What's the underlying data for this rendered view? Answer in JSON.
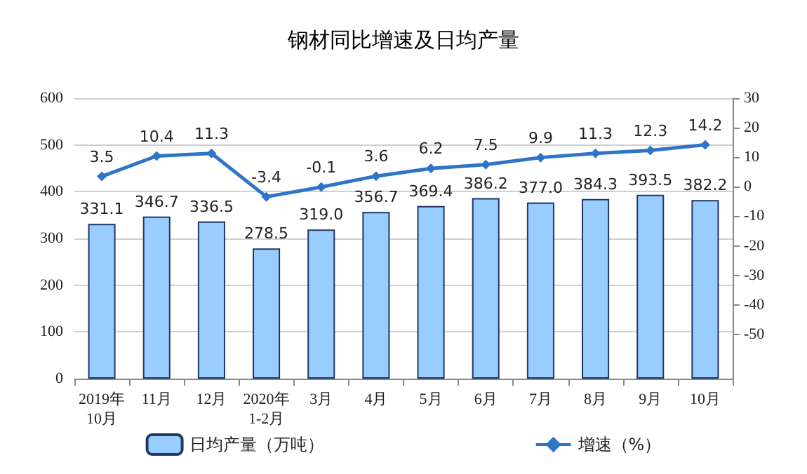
{
  "chart_data": {
    "type": "bar",
    "title": "钢材同比增速及日均产量",
    "categories": [
      "2019年\n10月",
      "11月",
      "12月",
      "2020年\n1-2月",
      "3月",
      "4月",
      "5月",
      "6月",
      "7月",
      "8月",
      "9月",
      "10月"
    ],
    "series": [
      {
        "name": "日均产量（万吨）",
        "color": "#99ccff",
        "values": [
          331.1,
          346.7,
          336.5,
          278.5,
          319.0,
          356.7,
          369.4,
          386.2,
          377.0,
          384.3,
          393.5,
          382.2
        ],
        "value_labels": [
          "331.1",
          "346.7",
          "336.5",
          "278.5",
          "319.0",
          "356.7",
          "369.4",
          "386.2",
          "377.0",
          "384.3",
          "393.5",
          "382.2"
        ]
      },
      {
        "name": "增速（%）",
        "type": "line",
        "axis": "y2",
        "color": "#2e75c8",
        "values": [
          3.5,
          10.4,
          11.3,
          -3.4,
          -0.1,
          3.6,
          6.2,
          7.5,
          9.9,
          11.3,
          12.3,
          14.2
        ],
        "value_labels": [
          "3.5",
          "10.4",
          "11.3",
          "-3.4",
          "-0.1",
          "3.6",
          "6.2",
          "7.5",
          "9.9",
          "11.3",
          "12.3",
          "14.2"
        ]
      }
    ],
    "ylim": [
      0,
      600
    ],
    "yticks": [
      0,
      100,
      200,
      300,
      400,
      500,
      600
    ],
    "y2lim": [
      -65,
      30
    ],
    "y2ticks": [
      -50,
      -40,
      -30,
      -20,
      -10,
      0,
      10,
      20,
      30
    ],
    "grid": "y",
    "legend": "bottom",
    "marker": "diamond",
    "line_style": "solid"
  }
}
